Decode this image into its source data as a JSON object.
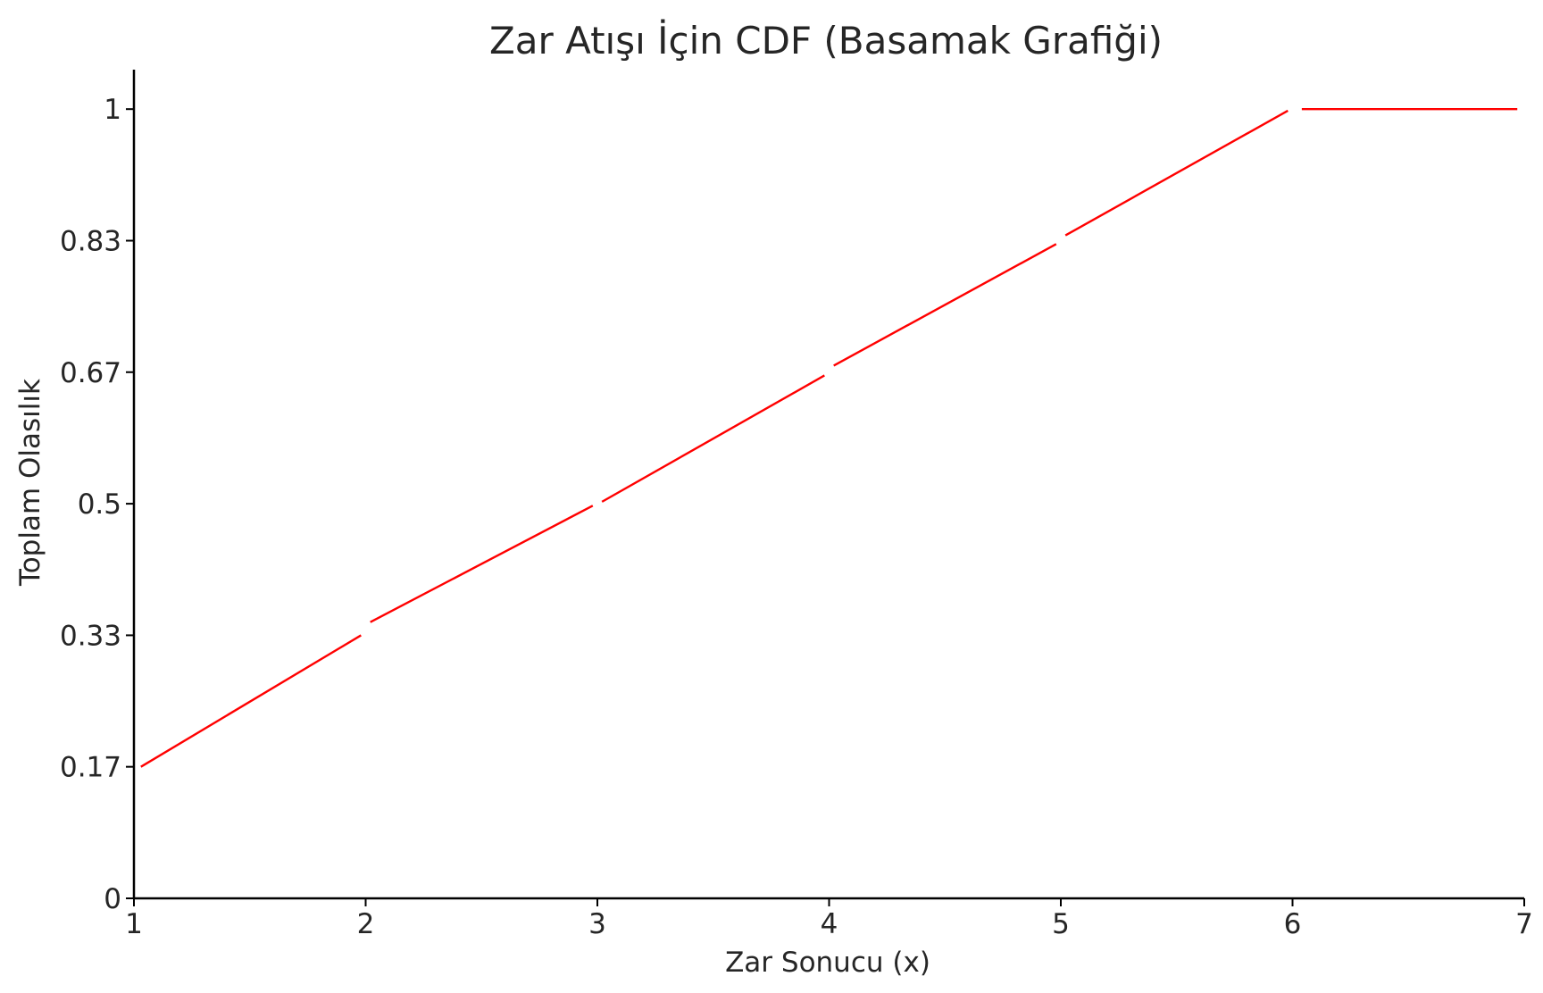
{
  "chart_data": {
    "type": "line",
    "title": "Zar Atışı İçin CDF (Basamak Grafiği)",
    "xlabel": "Zar Sonucu (x)",
    "ylabel": "Toplam Olasılık",
    "xlim": [
      1,
      7
    ],
    "ylim": [
      0,
      1.05
    ],
    "x_ticks": [
      1,
      2,
      3,
      4,
      5,
      6,
      7
    ],
    "x_tick_labels": [
      "1",
      "2",
      "3",
      "4",
      "5",
      "6",
      "7"
    ],
    "y_ticks": [
      0,
      0.1667,
      0.3333,
      0.5,
      0.6667,
      0.8333,
      1.0
    ],
    "y_tick_labels": [
      "0",
      "0.17",
      "0.33",
      "0.5",
      "0.67",
      "0.83",
      "1"
    ],
    "grid": false,
    "legend": "none",
    "line_color": "#ff0000",
    "series": [
      {
        "x": [
          1.03,
          1.98,
          2.02,
          2.98,
          3.02,
          3.98,
          4.02,
          4.98,
          5.02,
          5.98,
          6.04,
          6.97
        ],
        "y": [
          0.1667,
          0.3333,
          0.35,
          0.4975,
          0.5025,
          0.6625,
          0.675,
          0.829,
          0.84,
          0.998,
          1.0,
          1.0
        ],
        "segments": [
          [
            0,
            1
          ],
          [
            2,
            3
          ],
          [
            4,
            5
          ],
          [
            6,
            7
          ],
          [
            8,
            9
          ],
          [
            10,
            11
          ]
        ]
      }
    ]
  }
}
